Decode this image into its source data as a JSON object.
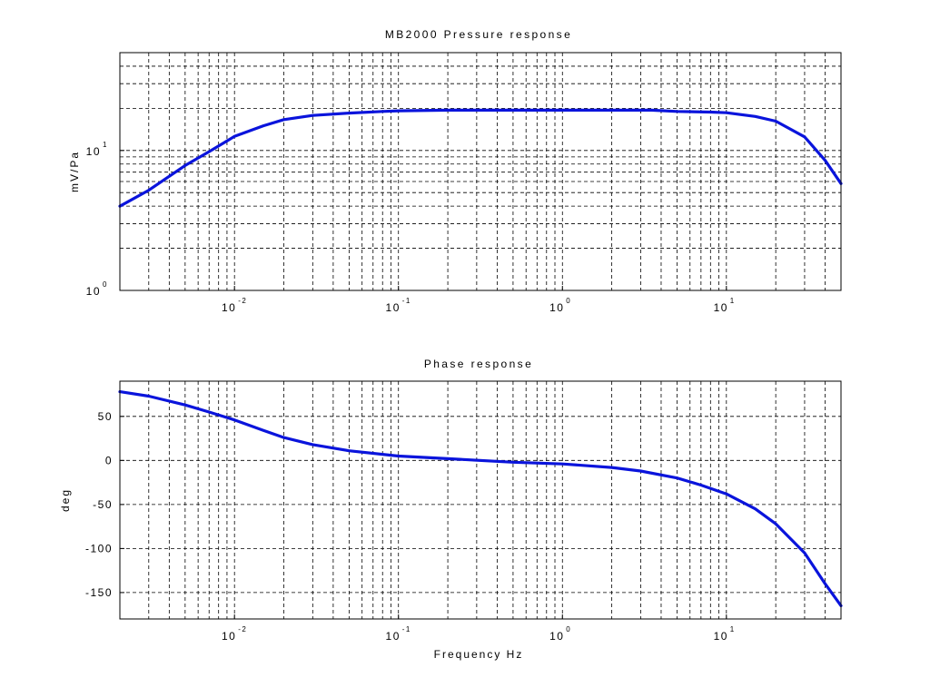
{
  "colors": {
    "background": "#ffffff",
    "axes": "#000000",
    "grid": "#000000",
    "series": "#0a14dc"
  },
  "chart_data": [
    {
      "type": "line",
      "title": "MB2000 Pressure response",
      "xlabel": "",
      "ylabel": "mV/Pa",
      "xscale": "log",
      "yscale": "log",
      "xlim": [
        0.002,
        50
      ],
      "ylim": [
        1,
        50
      ],
      "grid": true,
      "xticks": [
        {
          "base": "10",
          "exp": "-2",
          "value": 0.01
        },
        {
          "base": "10",
          "exp": "-1",
          "value": 0.1
        },
        {
          "base": "10",
          "exp": "0",
          "value": 1
        },
        {
          "base": "10",
          "exp": "1",
          "value": 10
        }
      ],
      "yticks": [
        {
          "base": "10",
          "exp": "0",
          "value": 1
        },
        {
          "base": "10",
          "exp": "1",
          "value": 10
        }
      ],
      "series": [
        {
          "x": [
            0.002,
            0.003,
            0.005,
            0.007,
            0.01,
            0.015,
            0.02,
            0.03,
            0.05,
            0.08,
            0.1,
            0.2,
            0.5,
            1,
            2,
            3.5,
            5,
            8,
            10,
            15,
            20,
            30,
            40,
            50
          ],
          "y": [
            4.0,
            5.2,
            7.8,
            9.8,
            12.6,
            15.0,
            16.6,
            17.8,
            18.5,
            19.0,
            19.2,
            19.4,
            19.4,
            19.4,
            19.4,
            19.4,
            19.0,
            18.8,
            18.6,
            17.5,
            16.2,
            12.5,
            8.5,
            5.8
          ]
        }
      ]
    },
    {
      "type": "line",
      "title": "Phase response",
      "xlabel": "Frequency Hz",
      "ylabel": "deg",
      "xscale": "log",
      "yscale": "linear",
      "xlim": [
        0.002,
        50
      ],
      "ylim": [
        -180,
        90
      ],
      "grid": true,
      "xticks": [
        {
          "base": "10",
          "exp": "-2",
          "value": 0.01
        },
        {
          "base": "10",
          "exp": "-1",
          "value": 0.1
        },
        {
          "base": "10",
          "exp": "0",
          "value": 1
        },
        {
          "base": "10",
          "exp": "1",
          "value": 10
        }
      ],
      "yticks": [
        {
          "label": "50",
          "value": 50
        },
        {
          "label": "0",
          "value": 0
        },
        {
          "label": "-50",
          "value": -50
        },
        {
          "label": "-100",
          "value": -100
        },
        {
          "label": "-150",
          "value": -150
        }
      ],
      "series": [
        {
          "x": [
            0.002,
            0.003,
            0.005,
            0.007,
            0.01,
            0.015,
            0.02,
            0.03,
            0.05,
            0.1,
            0.2,
            0.5,
            1,
            2,
            3,
            5,
            7,
            10,
            15,
            20,
            30,
            40,
            50
          ],
          "y": [
            78,
            73,
            63,
            55,
            46,
            34,
            26,
            18,
            11,
            5,
            2,
            -2,
            -4,
            -8,
            -12,
            -20,
            -28,
            -38,
            -55,
            -72,
            -105,
            -140,
            -165
          ]
        }
      ]
    }
  ]
}
